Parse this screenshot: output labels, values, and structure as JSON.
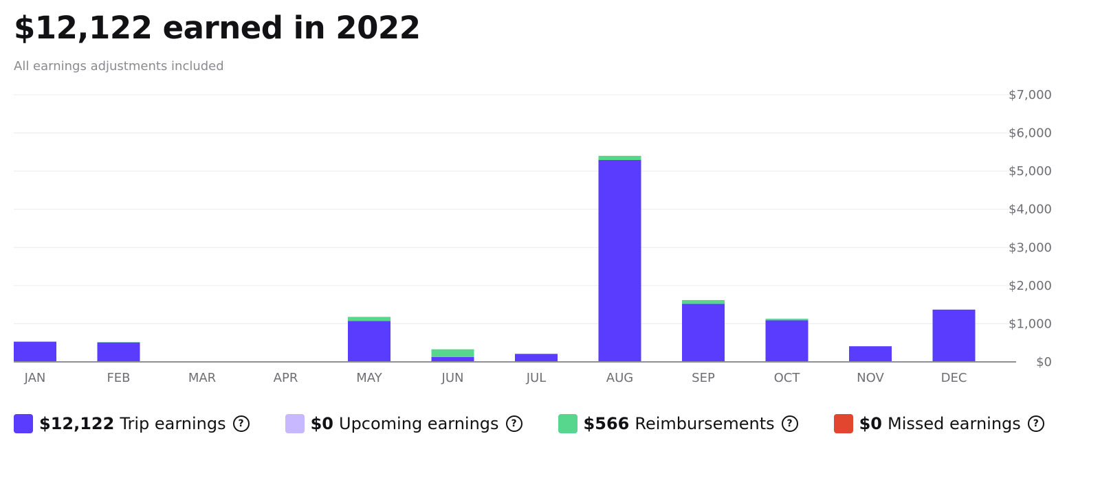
{
  "header": {
    "title": "$12,122 earned in 2022",
    "subtitle": "All earnings adjustments included"
  },
  "chart_data": {
    "type": "bar",
    "stacked": true,
    "title": "$12,122 earned in 2022",
    "subtitle": "All earnings adjustments included",
    "categories": [
      "JAN",
      "FEB",
      "MAR",
      "APR",
      "MAY",
      "JUN",
      "JUL",
      "AUG",
      "SEP",
      "OCT",
      "NOV",
      "DEC"
    ],
    "series": [
      {
        "name": "Trip earnings",
        "color": "#5a3cff",
        "values": [
          530,
          510,
          0,
          0,
          1070,
          130,
          210,
          5290,
          1520,
          1090,
          410,
          1370
        ]
      },
      {
        "name": "Reimbursements",
        "color": "#57d68d",
        "values": [
          0,
          10,
          0,
          0,
          110,
          200,
          0,
          110,
          100,
          40,
          0,
          0
        ]
      }
    ],
    "ylim": [
      0,
      7000
    ],
    "yticks": [
      0,
      1000,
      2000,
      3000,
      4000,
      5000,
      6000,
      7000
    ],
    "ytick_labels": [
      "$0",
      "$1,000",
      "$2,000",
      "$3,000",
      "$4,000",
      "$5,000",
      "$6,000",
      "$7,000"
    ],
    "y_axis_position": "right",
    "grid": true,
    "legend_position": "bottom-left",
    "xlabel": "",
    "ylabel": ""
  },
  "legend": {
    "items": [
      {
        "value": "$12,122",
        "label": "Trip earnings",
        "color": "#5a3cff",
        "icon": "help-circle-icon"
      },
      {
        "value": "$0",
        "label": "Upcoming earnings",
        "color": "#c7b8ff",
        "icon": "help-circle-icon"
      },
      {
        "value": "$566",
        "label": "Reimbursements",
        "color": "#57d68d",
        "icon": "help-circle-icon"
      },
      {
        "value": "$0",
        "label": "Missed earnings",
        "color": "#e3462f",
        "icon": "help-circle-icon"
      }
    ]
  },
  "help_glyph": "?"
}
